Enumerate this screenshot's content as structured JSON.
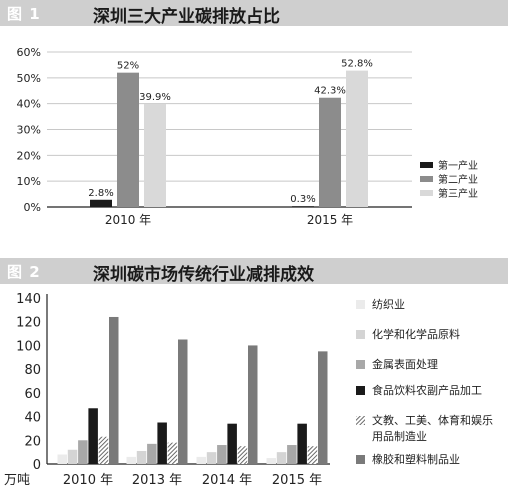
{
  "figures": [
    {
      "number": "图 1",
      "title": "深圳三大产业碳排放占比",
      "chart_data": {
        "type": "bar",
        "categories": [
          "2010 年",
          "2015 年"
        ],
        "series": [
          {
            "name": "第一产业",
            "values": [
              2.8,
              0.3
            ],
            "labels": [
              "2.8%",
              "0.3%"
            ],
            "color": "#1a1a1a"
          },
          {
            "name": "第二产业",
            "values": [
              52,
              42.3
            ],
            "labels": [
              "52%",
              "42.3%"
            ],
            "color": "#8c8c8c"
          },
          {
            "name": "第三产业",
            "values": [
              39.9,
              52.8
            ],
            "labels": [
              "39.9%",
              "52.8%"
            ],
            "color": "#d9d9d9"
          }
        ],
        "yticks": [
          "0%",
          "10%",
          "20%",
          "30%",
          "40%",
          "50%",
          "60%"
        ],
        "ylim": [
          0,
          60
        ],
        "grid": true,
        "legend": "right"
      }
    },
    {
      "number": "图 2",
      "title": "深圳碳市场传统行业减排成效",
      "chart_data": {
        "type": "bar",
        "categories": [
          "2010 年",
          "2013 年",
          "2014 年",
          "2015 年"
        ],
        "unit": "万吨",
        "series": [
          {
            "name": "纺织业",
            "values": [
              8,
              6,
              6,
              5
            ],
            "color": "#ebebeb",
            "pattern": "solid"
          },
          {
            "name": "化学和化学品原料",
            "values": [
              12,
              11,
              10,
              10
            ],
            "color": "#d4d4d4",
            "pattern": "solid"
          },
          {
            "name": "金属表面处理",
            "values": [
              20,
              17,
              16,
              16
            ],
            "color": "#a8a8a8",
            "pattern": "solid"
          },
          {
            "name": "食品饮料农副产品加工",
            "values": [
              47,
              35,
              34,
              34
            ],
            "color": "#1a1a1a",
            "pattern": "solid"
          },
          {
            "name": "文教、工美、体育和娱乐用品制造业",
            "legend_lines": [
              "文教、工美、体育和娱乐",
              "用品制造业"
            ],
            "values": [
              23,
              18,
              15,
              15
            ],
            "color": "#9a9a9a",
            "pattern": "hatch"
          },
          {
            "name": "橡胶和塑料制品业",
            "values": [
              124,
              105,
              100,
              95
            ],
            "color": "#7a7a7a",
            "pattern": "solid"
          }
        ],
        "yticks": [
          "0",
          "20",
          "40",
          "60",
          "80",
          "100",
          "120",
          "140"
        ],
        "ylim": [
          0,
          140
        ],
        "grid": false,
        "legend": "right"
      }
    }
  ]
}
